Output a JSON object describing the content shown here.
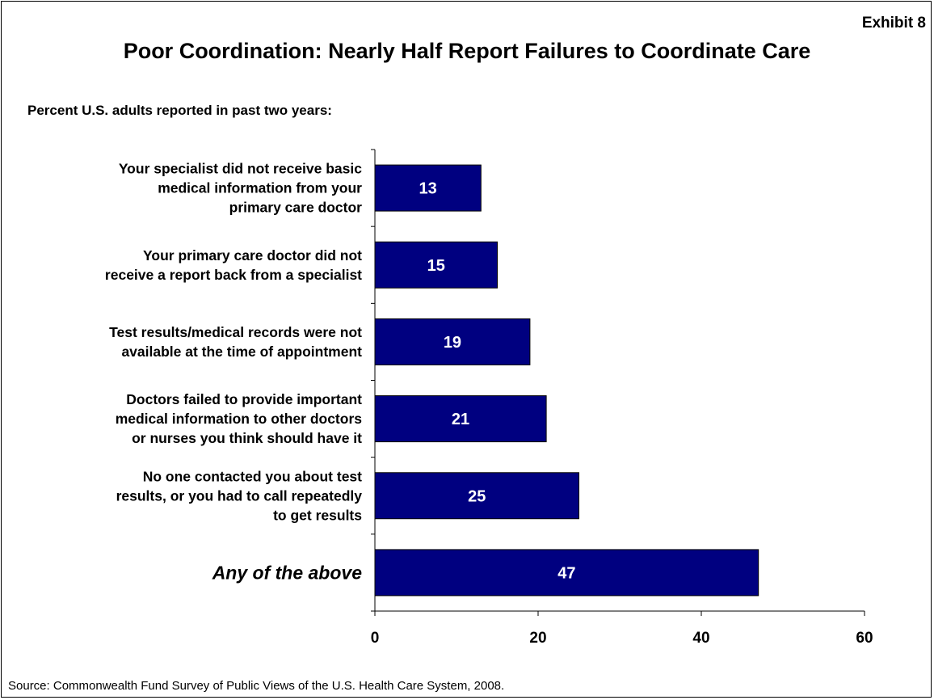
{
  "exhibit_label": "Exhibit 8",
  "title": "Poor Coordination: Nearly Half Report Failures to Coordinate Care",
  "subtitle": "Percent U.S. adults reported in past two years:",
  "source": "Source: Commonwealth Fund Survey of Public Views of the U.S. Health Care System, 2008.",
  "chart_data": {
    "type": "bar",
    "orientation": "horizontal",
    "title": "Poor Coordination: Nearly Half Report Failures to Coordinate Care",
    "xlabel": "",
    "ylabel": "",
    "xlim": [
      0,
      60
    ],
    "x_ticks": [
      0,
      20,
      40,
      60
    ],
    "grid": false,
    "legend": "none",
    "bar_color": "#000080",
    "categories": [
      [
        "Your specialist did not receive basic",
        "medical information from your",
        "primary care doctor"
      ],
      [
        "Your primary care doctor did not",
        "receive a report back from a specialist"
      ],
      [
        "Test results/medical records were not",
        "available at the time of appointment"
      ],
      [
        "Doctors failed to provide important",
        "medical information to other doctors",
        "or nurses you think should have it"
      ],
      [
        "No one contacted you about test",
        "results, or you had to call repeatedly",
        "to get results"
      ],
      [
        "Any of the above"
      ]
    ],
    "emphasized_category_index": 5,
    "values": [
      13,
      15,
      19,
      21,
      25,
      47
    ]
  }
}
